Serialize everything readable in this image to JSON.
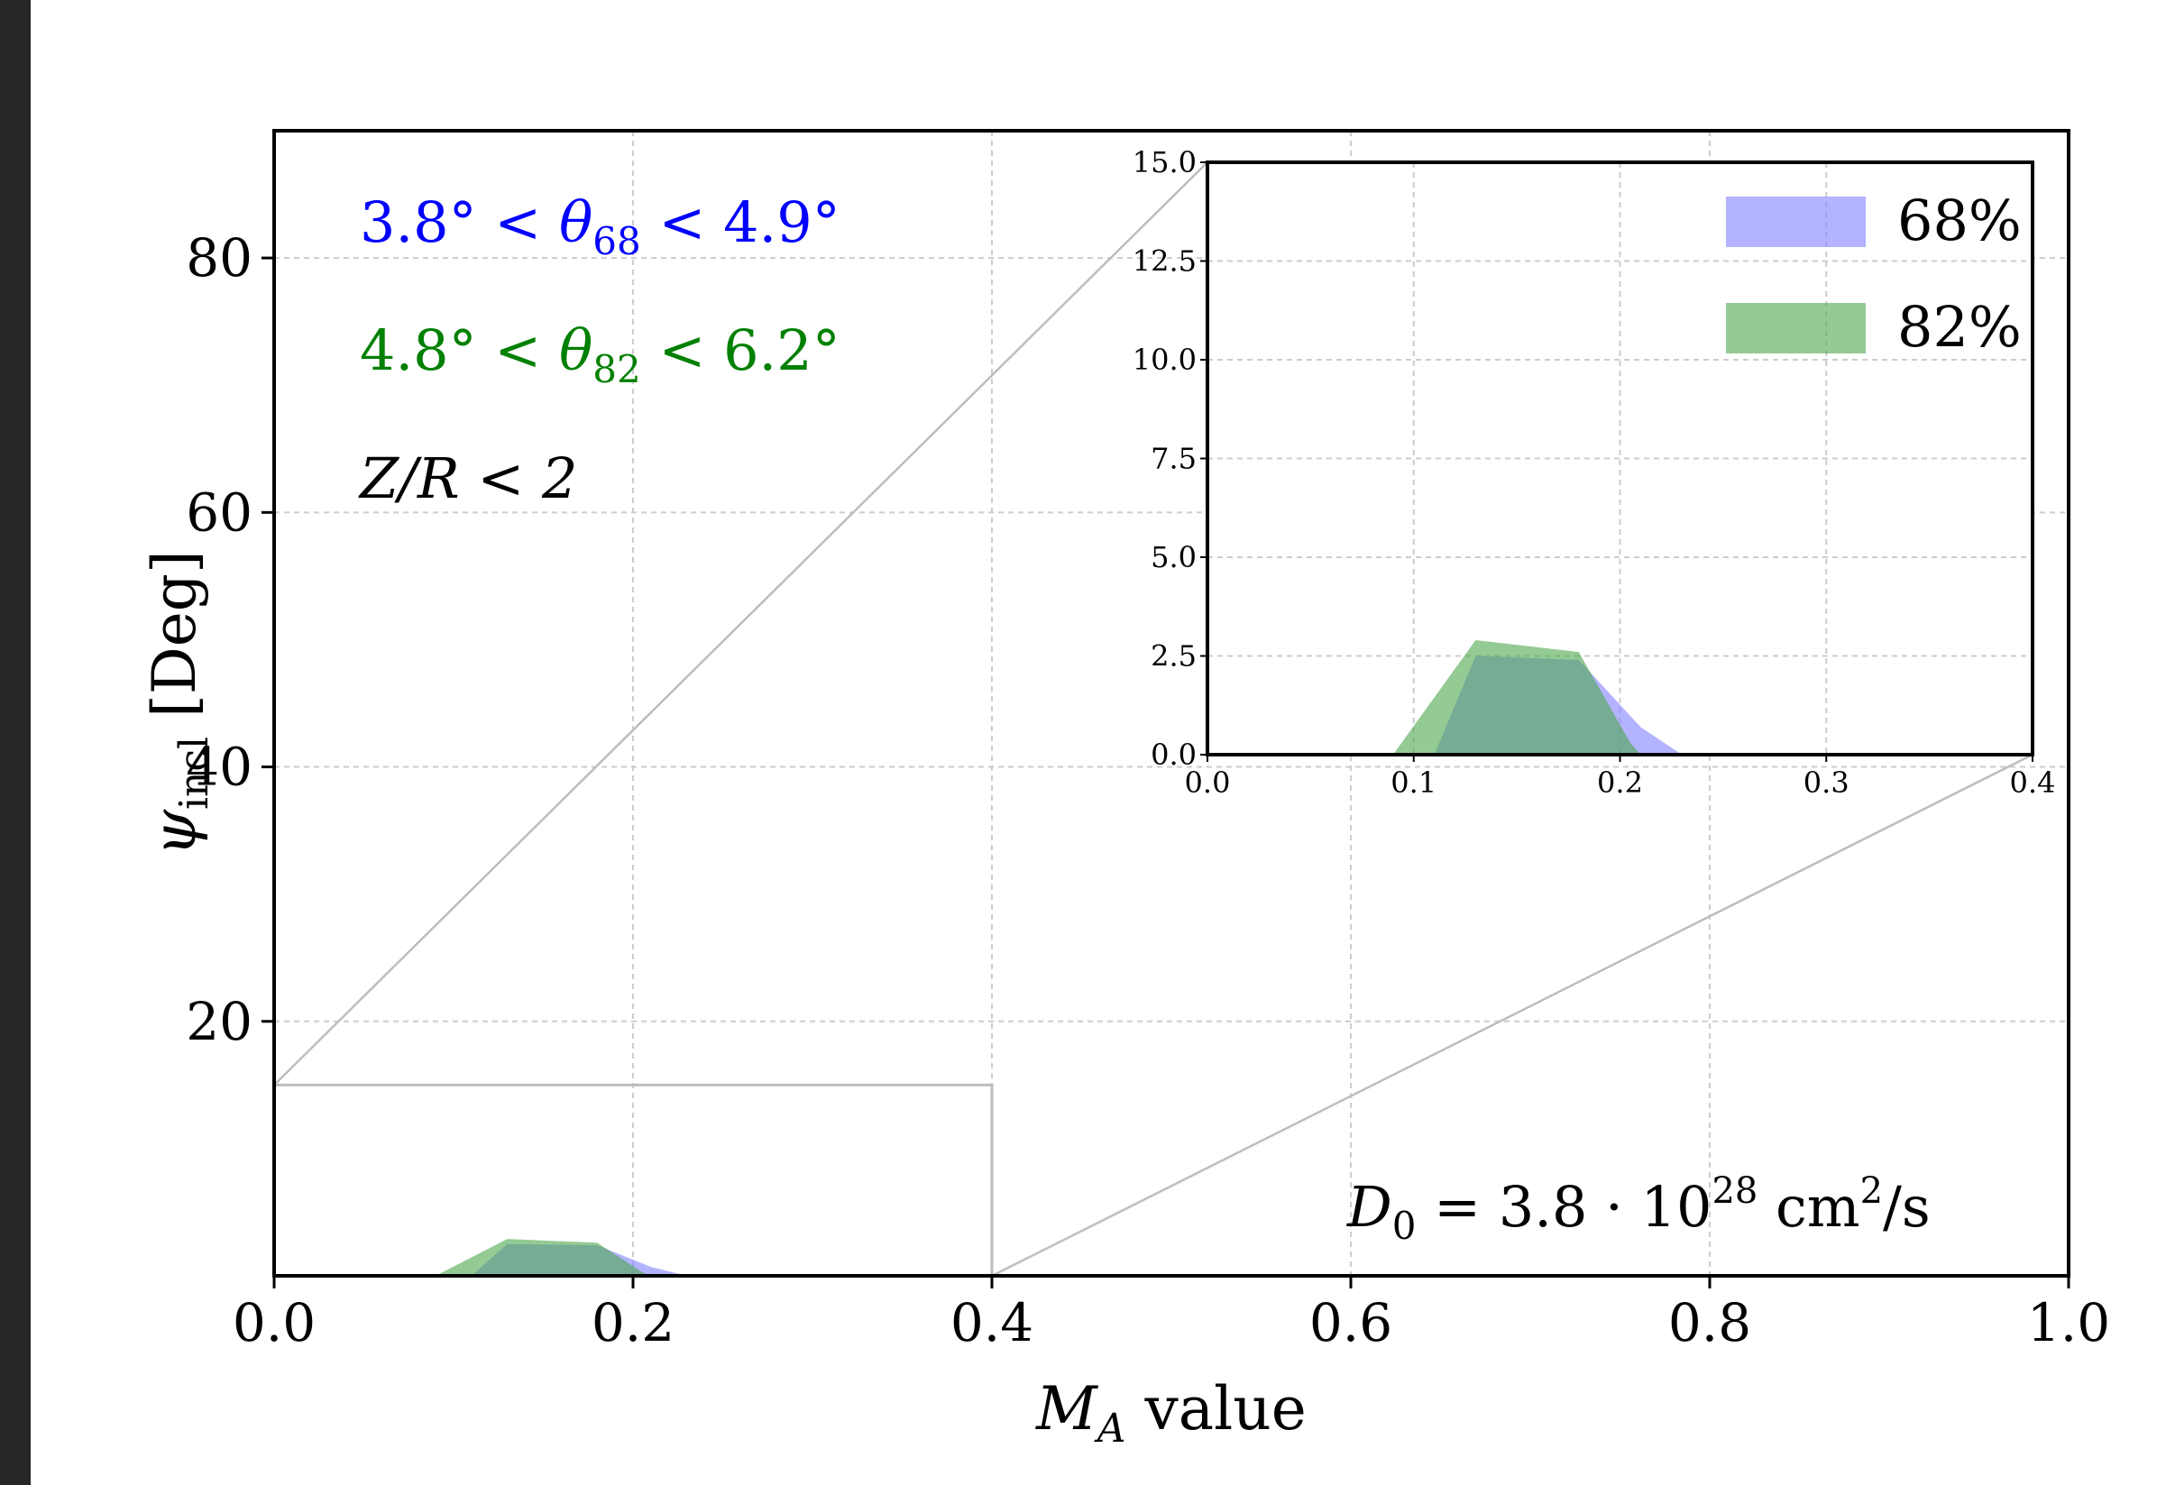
{
  "chart_data": {
    "type": "area",
    "xlabel": "M",
    "xlabel_sub": "A",
    "xlabel_rest": " value",
    "ylabel": "ψ",
    "ylabel_sub": "incl",
    "ylabel_rest": " [Deg]",
    "xlim": [
      0.0,
      1.0
    ],
    "ylim": [
      0,
      90
    ],
    "xticks": [
      "0.0",
      "0.2",
      "0.4",
      "0.6",
      "0.8",
      "1.0"
    ],
    "yticks": [
      "20",
      "40",
      "60",
      "80"
    ],
    "grid": true,
    "annotations": {
      "theta68": {
        "pre": "3.8° < ",
        "sym": "θ",
        "sub": "68",
        "post": " < 4.9°",
        "color": "#0000ff"
      },
      "theta82": {
        "pre": "4.8° < ",
        "sym": "θ",
        "sub": "82",
        "post": " < 6.2°",
        "color": "#008000"
      },
      "zr": {
        "text": "Z/R < 2",
        "color": "#000000"
      },
      "d0": {
        "sym": "D",
        "sub": "0",
        "eq": " = 3.8 · 10",
        "exp": "28",
        "unit": " cm",
        "unit_exp": "2",
        "unit_tail": "/s"
      }
    },
    "series": [
      {
        "name": "68%",
        "color": "#8080ff",
        "alpha": 0.6,
        "points": [
          [
            0.09,
            0
          ],
          [
            0.11,
            0
          ],
          [
            0.13,
            2.5
          ],
          [
            0.18,
            2.4
          ],
          [
            0.21,
            0.7
          ],
          [
            0.23,
            0
          ],
          [
            0.25,
            0
          ]
        ]
      },
      {
        "name": "82%",
        "color": "#4ca64c",
        "alpha": 0.6,
        "points": [
          [
            0.09,
            0
          ],
          [
            0.13,
            2.9
          ],
          [
            0.18,
            2.6
          ],
          [
            0.205,
            0.3
          ],
          [
            0.21,
            0
          ]
        ]
      }
    ],
    "zoom_box": {
      "xlim": [
        0.0,
        0.4
      ],
      "ylim": [
        0,
        15
      ]
    },
    "inset": {
      "xlim": [
        0.0,
        0.4
      ],
      "ylim": [
        0,
        15
      ],
      "xticks": [
        "0.0",
        "0.1",
        "0.2",
        "0.3",
        "0.4"
      ],
      "yticks": [
        "0.0",
        "2.5",
        "5.0",
        "7.5",
        "10.0",
        "12.5",
        "15.0"
      ],
      "legend": [
        "68%",
        "82%"
      ],
      "legend_position": "upper-right"
    }
  }
}
